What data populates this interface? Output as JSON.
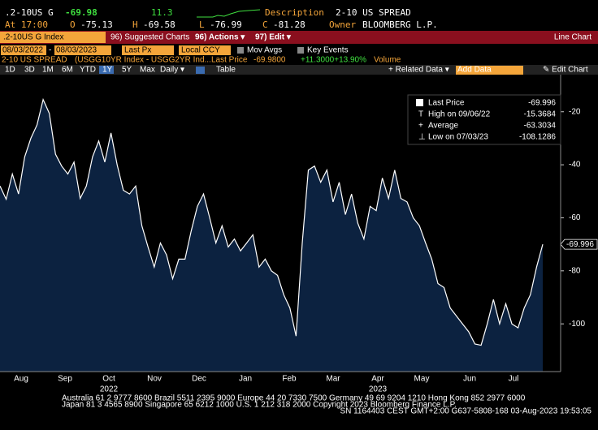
{
  "header": {
    "ticker": ".2-10US G",
    "last": -69.98,
    "change": 11.3,
    "description_label": "Description",
    "description": "2-10 US SPREAD",
    "at": "At 17:00",
    "open_label": "O",
    "open": -75.13,
    "high_label": "H",
    "high": -69.58,
    "low_label": "L",
    "low": -76.99,
    "close_label": "C",
    "close": -81.28,
    "owner_label": "Owner",
    "owner": "BLOOMBERG L.P."
  },
  "menu": {
    "security": ".2-10US G Index",
    "suggested": "96) Suggested Charts",
    "actions": "96) Actions ▾",
    "edit": "97) Edit ▾",
    "view": "Line Chart"
  },
  "controls": {
    "start": "08/03/2022",
    "dash": "-",
    "end": "08/03/2023",
    "field": "Last Px",
    "currency": "Local CCY",
    "mov_avgs": "Mov Avgs",
    "key_events": "Key Events"
  },
  "info": {
    "name": "2-10 US SPREAD",
    "formula": "(USGG10YR Index - USGG2YR Ind...",
    "last_label": "Last Price",
    "last": "-69.9800",
    "change": "+11.3000+13.90%",
    "volume": "Volume"
  },
  "periods": [
    "1D",
    "3D",
    "1M",
    "6M",
    "YTD",
    "1Y",
    "5Y",
    "Max"
  ],
  "frequency": "Daily ▾",
  "table": "Table",
  "related": "+ Related Data ▾",
  "add_data": "Add Data",
  "edit_chart": "✎ Edit Chart",
  "chart_data": {
    "type": "line",
    "series": [
      {
        "name": "Last Price",
        "color": "#ffffff",
        "values": [
          -48,
          -53,
          -43.5,
          -51,
          -37,
          -30,
          -25,
          -15.4,
          -20.6,
          -36,
          -40.5,
          -43.5,
          -39,
          -52.7,
          -48,
          -37,
          -31,
          -39,
          -28,
          -40,
          -49.6,
          -51,
          -48,
          -63,
          -71,
          -78.6,
          -69.5,
          -74,
          -83,
          -75.6,
          -75.6,
          -65,
          -55.7,
          -51,
          -60,
          -69.5,
          -63,
          -71,
          -68,
          -72.5,
          -69.5,
          -66.4,
          -78.6,
          -75.6,
          -80,
          -81.7,
          -89,
          -94,
          -104.6,
          -69.5,
          -42,
          -40.5,
          -46.6,
          -42,
          -54,
          -46.6,
          -58.8,
          -51,
          -62,
          -68,
          -55.7,
          -57.3,
          -45,
          -52.7,
          -42,
          -52.7,
          -54,
          -60,
          -63,
          -69.5,
          -75.6,
          -84.8,
          -86.3,
          -94,
          -97,
          -100,
          -103,
          -107.6,
          -108.1,
          -100,
          -90.8,
          -100,
          -92.4,
          -100,
          -101.5,
          -94,
          -89,
          -78.6,
          -69.996
        ]
      }
    ],
    "ylim": [
      -118,
      -6
    ],
    "yticks": [
      -20,
      -40,
      -60,
      -80,
      -100
    ],
    "xtick_labels": [
      "Aug",
      "Sep",
      "Oct",
      "Nov",
      "Dec",
      "Jan",
      "Feb",
      "Mar",
      "Apr",
      "May",
      "Jun",
      "Jul"
    ],
    "year_labels": [
      "2022",
      "2023"
    ],
    "legend": [
      {
        "label": "Last Price"
      },
      {
        "label": "High on 09/06/22",
        "value": -15.3684
      },
      {
        "label": "Average",
        "value": -63.3034
      },
      {
        "label": "Low on 07/03/23",
        "value": -108.1286
      }
    ]
  },
  "footer": [
    "Australia 61 2 9777 8600 Brazil 5511 2395 9000 Europe 44 20 7330 7500 Germany 49 69 9204 1210 Hong Kong 852 2977 6000",
    "Japan 81 3 4565 8900 Singapore 65 6212 1000 U.S. 1 212 318 2000 Copyright 2023 Bloomberg Finance L.P.",
    "SN 1164403 CEST GMT+2:00 G637-5808-168 03-Aug-2023 19:53:05"
  ]
}
